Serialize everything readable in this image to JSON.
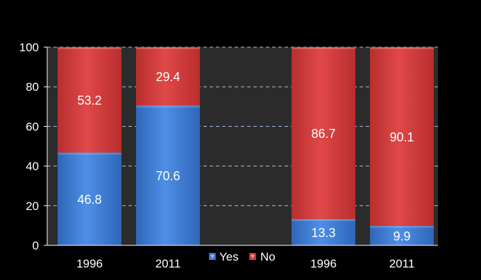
{
  "chart_data": {
    "type": "bar",
    "stacked": true,
    "categories": [
      "1996",
      "2011",
      "1996",
      "2011"
    ],
    "series": [
      {
        "name": "Yes",
        "color": "#3f7fd6",
        "values": [
          46.8,
          70.6,
          13.3,
          9.9
        ]
      },
      {
        "name": "No",
        "color": "#d63c3c",
        "values": [
          53.2,
          29.4,
          86.7,
          90.1
        ]
      }
    ],
    "data_labels": {
      "Yes": [
        "46.8",
        "70.6",
        "13.3",
        "9.9"
      ],
      "No": [
        "53.2",
        "29.4",
        "86.7",
        "90.1"
      ]
    },
    "y_ticks": [
      "0",
      "20",
      "40",
      "60",
      "80",
      "100"
    ],
    "ylim": [
      0,
      100
    ],
    "grid": true,
    "legend_position": "bottom-center",
    "colors": {
      "background": "#000000",
      "plot_background": "#2b2b2b",
      "gridline": "#a9c4e8",
      "axis": "#ffffff",
      "label": "#ffffff"
    }
  }
}
